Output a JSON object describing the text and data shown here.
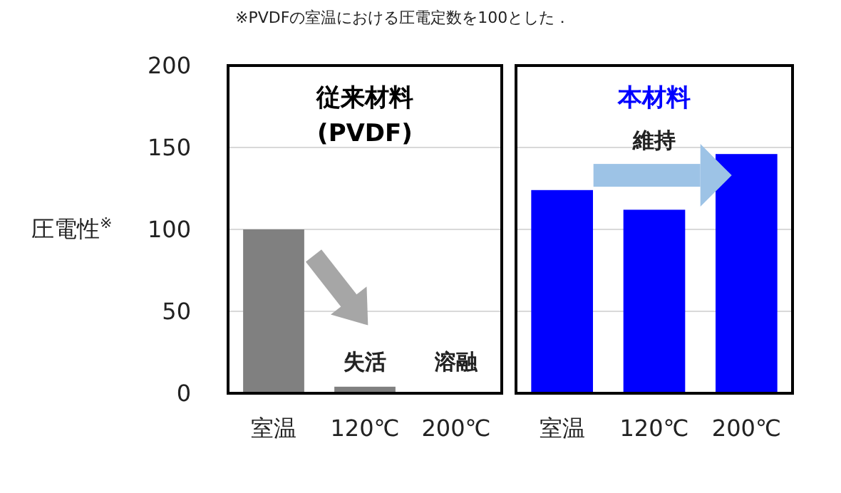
{
  "chart_data": [
    {
      "type": "bar",
      "title": "従来材料\n(PVDF)",
      "ylabel": "圧電性$^{※}$",
      "categories": [
        "室温",
        "120℃",
        "200℃"
      ],
      "values": [
        100,
        4,
        null
      ],
      "color": "#808080",
      "ylim": [
        0,
        200
      ],
      "yticks": [
        0,
        50,
        100,
        150,
        200
      ],
      "grid": "y",
      "annotations": [
        "※PVDFの室温における圧電定数を100とした．",
        "失活",
        "溶融"
      ]
    },
    {
      "type": "bar",
      "title": "本材料",
      "categories": [
        "室温",
        "120℃",
        "200℃"
      ],
      "values": [
        124,
        112,
        146
      ],
      "color": "#0000ff",
      "ylim": [
        0,
        200
      ],
      "yticks": [
        0,
        50,
        100,
        150,
        200
      ],
      "grid": "y",
      "tick_labels": "x",
      "annotations": [
        "維持"
      ]
    }
  ]
}
